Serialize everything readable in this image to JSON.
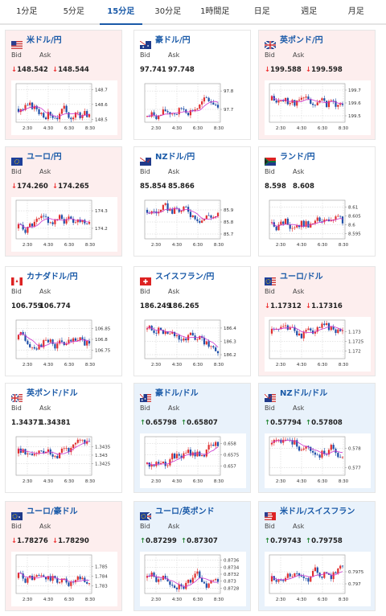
{
  "tabs": [
    {
      "label": "1分足",
      "active": false
    },
    {
      "label": "5分足",
      "active": false
    },
    {
      "label": "15分足",
      "active": true
    },
    {
      "label": "30分足",
      "active": false
    },
    {
      "label": "1時間足",
      "active": false
    },
    {
      "label": "日足",
      "active": false
    },
    {
      "label": "週足",
      "active": false
    },
    {
      "label": "月足",
      "active": false
    }
  ],
  "common": {
    "bid_label": "Bid",
    "ask_label": "Ask",
    "x_ticks": [
      "2:30",
      "4:30",
      "6:30",
      "8:30"
    ]
  },
  "colors": {
    "up": "#e03030",
    "down": "#1f4fa8",
    "ma": "#cc33cc",
    "grid": "#cfcfcf",
    "down_bg": "#fdeeee",
    "up_bg": "#e9f2fb"
  },
  "cards": [
    {
      "pair": "米ドル/円",
      "flag": "us-flag",
      "trend": "down",
      "bid": "148.542",
      "ask": "148.544",
      "arrow": "↓",
      "chart_data": {
        "type": "candlestick",
        "y_ticks": [
          "148.7",
          "148.6",
          "148.5"
        ],
        "ylim": [
          148.48,
          148.74
        ],
        "seed": 3,
        "start": 148.57,
        "end": 148.52,
        "ma_shape": "hump"
      }
    },
    {
      "pair": "豪ドル/円",
      "flag": "au-flag",
      "trend": "flat",
      "bid": "97.741",
      "ask": "97.748",
      "arrow": "",
      "chart_data": {
        "type": "candlestick",
        "y_ticks": [
          "97.8",
          "97.7"
        ],
        "ylim": [
          97.63,
          97.84
        ],
        "seed": 7,
        "start": 97.66,
        "end": 97.75,
        "ma_shape": "rise"
      }
    },
    {
      "pair": "英ポンド/円",
      "flag": "uk-flag",
      "trend": "down",
      "bid": "199.588",
      "ask": "199.598",
      "arrow": "↓",
      "chart_data": {
        "type": "candlestick",
        "y_ticks": [
          "199.7",
          "199.6",
          "199.5"
        ],
        "ylim": [
          199.45,
          199.75
        ],
        "seed": 11,
        "start": 199.62,
        "end": 199.58,
        "ma_shape": "flat"
      }
    },
    {
      "pair": "ユーロ/円",
      "flag": "eu-flag",
      "trend": "down",
      "bid": "174.260",
      "ask": "174.265",
      "arrow": "↓",
      "chart_data": {
        "type": "candlestick",
        "y_ticks": [
          "174.3",
          "174.2"
        ],
        "ylim": [
          174.14,
          174.36
        ],
        "seed": 5,
        "start": 174.2,
        "end": 174.27,
        "ma_shape": "hump"
      }
    },
    {
      "pair": "NZドル/円",
      "flag": "nz-flag",
      "trend": "flat",
      "bid": "85.854",
      "ask": "85.866",
      "arrow": "",
      "chart_data": {
        "type": "candlestick",
        "y_ticks": [
          "85.9",
          "85.8",
          "85.7"
        ],
        "ylim": [
          85.66,
          85.98
        ],
        "seed": 9,
        "start": 85.9,
        "end": 85.86,
        "ma_shape": "fall"
      }
    },
    {
      "pair": "ランド/円",
      "flag": "za-flag",
      "trend": "flat",
      "bid": "8.598",
      "ask": "8.608",
      "arrow": "",
      "chart_data": {
        "type": "candlestick",
        "y_ticks": [
          "8.61",
          "8.605",
          "8.6",
          "8.595"
        ],
        "ylim": [
          8.592,
          8.614
        ],
        "seed": 13,
        "start": 8.601,
        "end": 8.6,
        "ma_shape": "flat"
      }
    },
    {
      "pair": "カナダドル/円",
      "flag": "ca-flag",
      "trend": "flat",
      "bid": "106.759",
      "ask": "106.774",
      "arrow": "",
      "chart_data": {
        "type": "candlestick",
        "y_ticks": [
          "106.85",
          "106.8",
          "106.75"
        ],
        "ylim": [
          106.71,
          106.89
        ],
        "seed": 17,
        "start": 106.8,
        "end": 106.76,
        "ma_shape": "flat"
      }
    },
    {
      "pair": "スイスフラン/円",
      "flag": "ch-flag",
      "trend": "flat",
      "bid": "186.249",
      "ask": "186.265",
      "arrow": "",
      "chart_data": {
        "type": "candlestick",
        "y_ticks": [
          "186.4",
          "186.3",
          "186.2"
        ],
        "ylim": [
          186.17,
          186.46
        ],
        "seed": 19,
        "start": 186.39,
        "end": 186.26,
        "ma_shape": "fall"
      }
    },
    {
      "pair": "ユーロ/ドル",
      "flag": "eu-us-flag",
      "trend": "down",
      "bid": "1.17312",
      "ask": "1.17316",
      "arrow": "↓",
      "chart_data": {
        "type": "candlestick",
        "y_ticks": [
          "1.173",
          "1.1725",
          "1.172"
        ],
        "ylim": [
          1.1716,
          1.1736
        ],
        "seed": 23,
        "start": 1.1729,
        "end": 1.1731,
        "ma_shape": "dip"
      }
    },
    {
      "pair": "英ポンド/ドル",
      "flag": "uk-us-flag",
      "trend": "flat",
      "bid": "1.34371",
      "ask": "1.34381",
      "arrow": "",
      "chart_data": {
        "type": "candlestick",
        "y_ticks": [
          "1.3435",
          "1.343",
          "1.3425"
        ],
        "ylim": [
          1.3418,
          1.3441
        ],
        "seed": 29,
        "start": 1.3431,
        "end": 1.3437,
        "ma_shape": "dip"
      }
    },
    {
      "pair": "豪ドル/ドル",
      "flag": "au-us-flag",
      "trend": "up",
      "bid": "0.65798",
      "ask": "0.65807",
      "arrow": "↑",
      "chart_data": {
        "type": "candlestick",
        "y_ticks": [
          "0.658",
          "0.6575",
          "0.657"
        ],
        "ylim": [
          0.6566,
          0.6583
        ],
        "seed": 31,
        "start": 0.6571,
        "end": 0.6579,
        "ma_shape": "rise"
      }
    },
    {
      "pair": "NZドル/ドル",
      "flag": "nz-us-flag",
      "trend": "up",
      "bid": "0.57794",
      "ask": "0.57808",
      "arrow": "↑",
      "chart_data": {
        "type": "candlestick",
        "y_ticks": [
          "0.578",
          "0.577"
        ],
        "ylim": [
          0.5766,
          0.5786
        ],
        "seed": 37,
        "start": 0.5782,
        "end": 0.5779,
        "ma_shape": "fall"
      }
    },
    {
      "pair": "ユーロ/豪ドル",
      "flag": "eu-au-flag",
      "trend": "down",
      "bid": "1.78276",
      "ask": "1.78290",
      "arrow": "↓",
      "chart_data": {
        "type": "candlestick",
        "y_ticks": [
          "1.785",
          "1.784",
          "1.783"
        ],
        "ylim": [
          1.7822,
          1.7862
        ],
        "seed": 41,
        "start": 1.7838,
        "end": 1.7829,
        "ma_shape": "fall"
      }
    },
    {
      "pair": "ユーロ/英ポンド",
      "flag": "eu-uk-flag",
      "trend": "up",
      "bid": "0.87299",
      "ask": "0.87307",
      "arrow": "↑",
      "chart_data": {
        "type": "candlestick",
        "y_ticks": [
          "0.8736",
          "0.8734",
          "0.8732",
          "0.873",
          "0.8728"
        ],
        "ylim": [
          0.87265,
          0.87375
        ],
        "seed": 43,
        "start": 0.8731,
        "end": 0.873,
        "ma_shape": "hump"
      }
    },
    {
      "pair": "米ドル/スイスフラン",
      "flag": "us-ch-flag",
      "trend": "up",
      "bid": "0.79743",
      "ask": "0.79758",
      "arrow": "↑",
      "chart_data": {
        "type": "candlestick",
        "y_ticks": [
          "0.7975",
          "0.797"
        ],
        "ylim": [
          0.7966,
          0.7982
        ],
        "seed": 47,
        "start": 0.7971,
        "end": 0.7975,
        "ma_shape": "rise"
      }
    }
  ]
}
